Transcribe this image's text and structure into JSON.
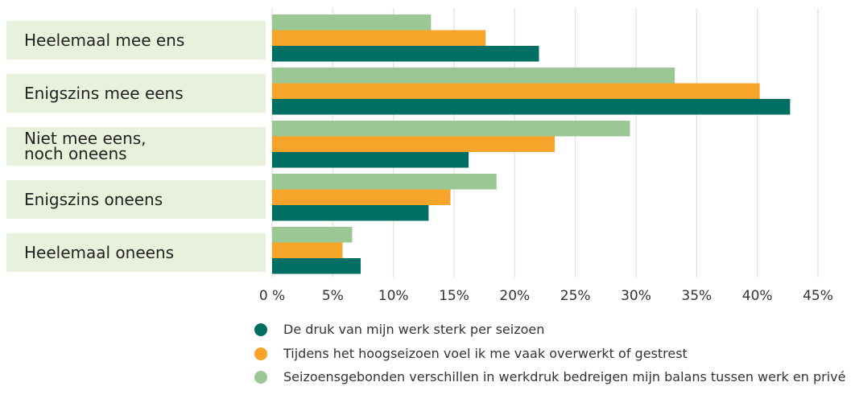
{
  "chart_data": {
    "type": "bar",
    "orientation": "horizontal",
    "categories": [
      "Heelemaal mee ens",
      "Enigszins mee eens",
      "Niet mee eens,\nnoch oneens",
      "Enigszins oneens",
      "Heelemaal oneens"
    ],
    "series": [
      {
        "name": "De druk van mijn werk sterk per seizoen",
        "color": "#006e63",
        "values": [
          22.0,
          42.7,
          16.2,
          12.9,
          7.3
        ]
      },
      {
        "name": "Tijdens het hoogseizoen voel ik me vaak overwerkt of gestrest",
        "color": "#f7a42a",
        "values": [
          17.6,
          40.2,
          23.3,
          14.7,
          5.8
        ]
      },
      {
        "name": "Seizoensgebonden verschillen in werkdruk bedreigen mijn balans tussen werk en privé",
        "color": "#9ac793",
        "values": [
          13.1,
          33.2,
          29.5,
          18.5,
          6.6
        ]
      }
    ],
    "xlim": [
      0,
      45
    ],
    "xticks": [
      {
        "value": 0,
        "label": "0 %"
      },
      {
        "value": 5,
        "label": "5%"
      },
      {
        "value": 10,
        "label": "10%"
      },
      {
        "value": 15,
        "label": "15%"
      },
      {
        "value": 20,
        "label": "20%"
      },
      {
        "value": 25,
        "label": "25%"
      },
      {
        "value": 30,
        "label": "30%"
      },
      {
        "value": 35,
        "label": "35%"
      },
      {
        "value": 40,
        "label": "40%"
      },
      {
        "value": 45,
        "label": "45%"
      }
    ],
    "grid": true,
    "legend": "bottom"
  }
}
